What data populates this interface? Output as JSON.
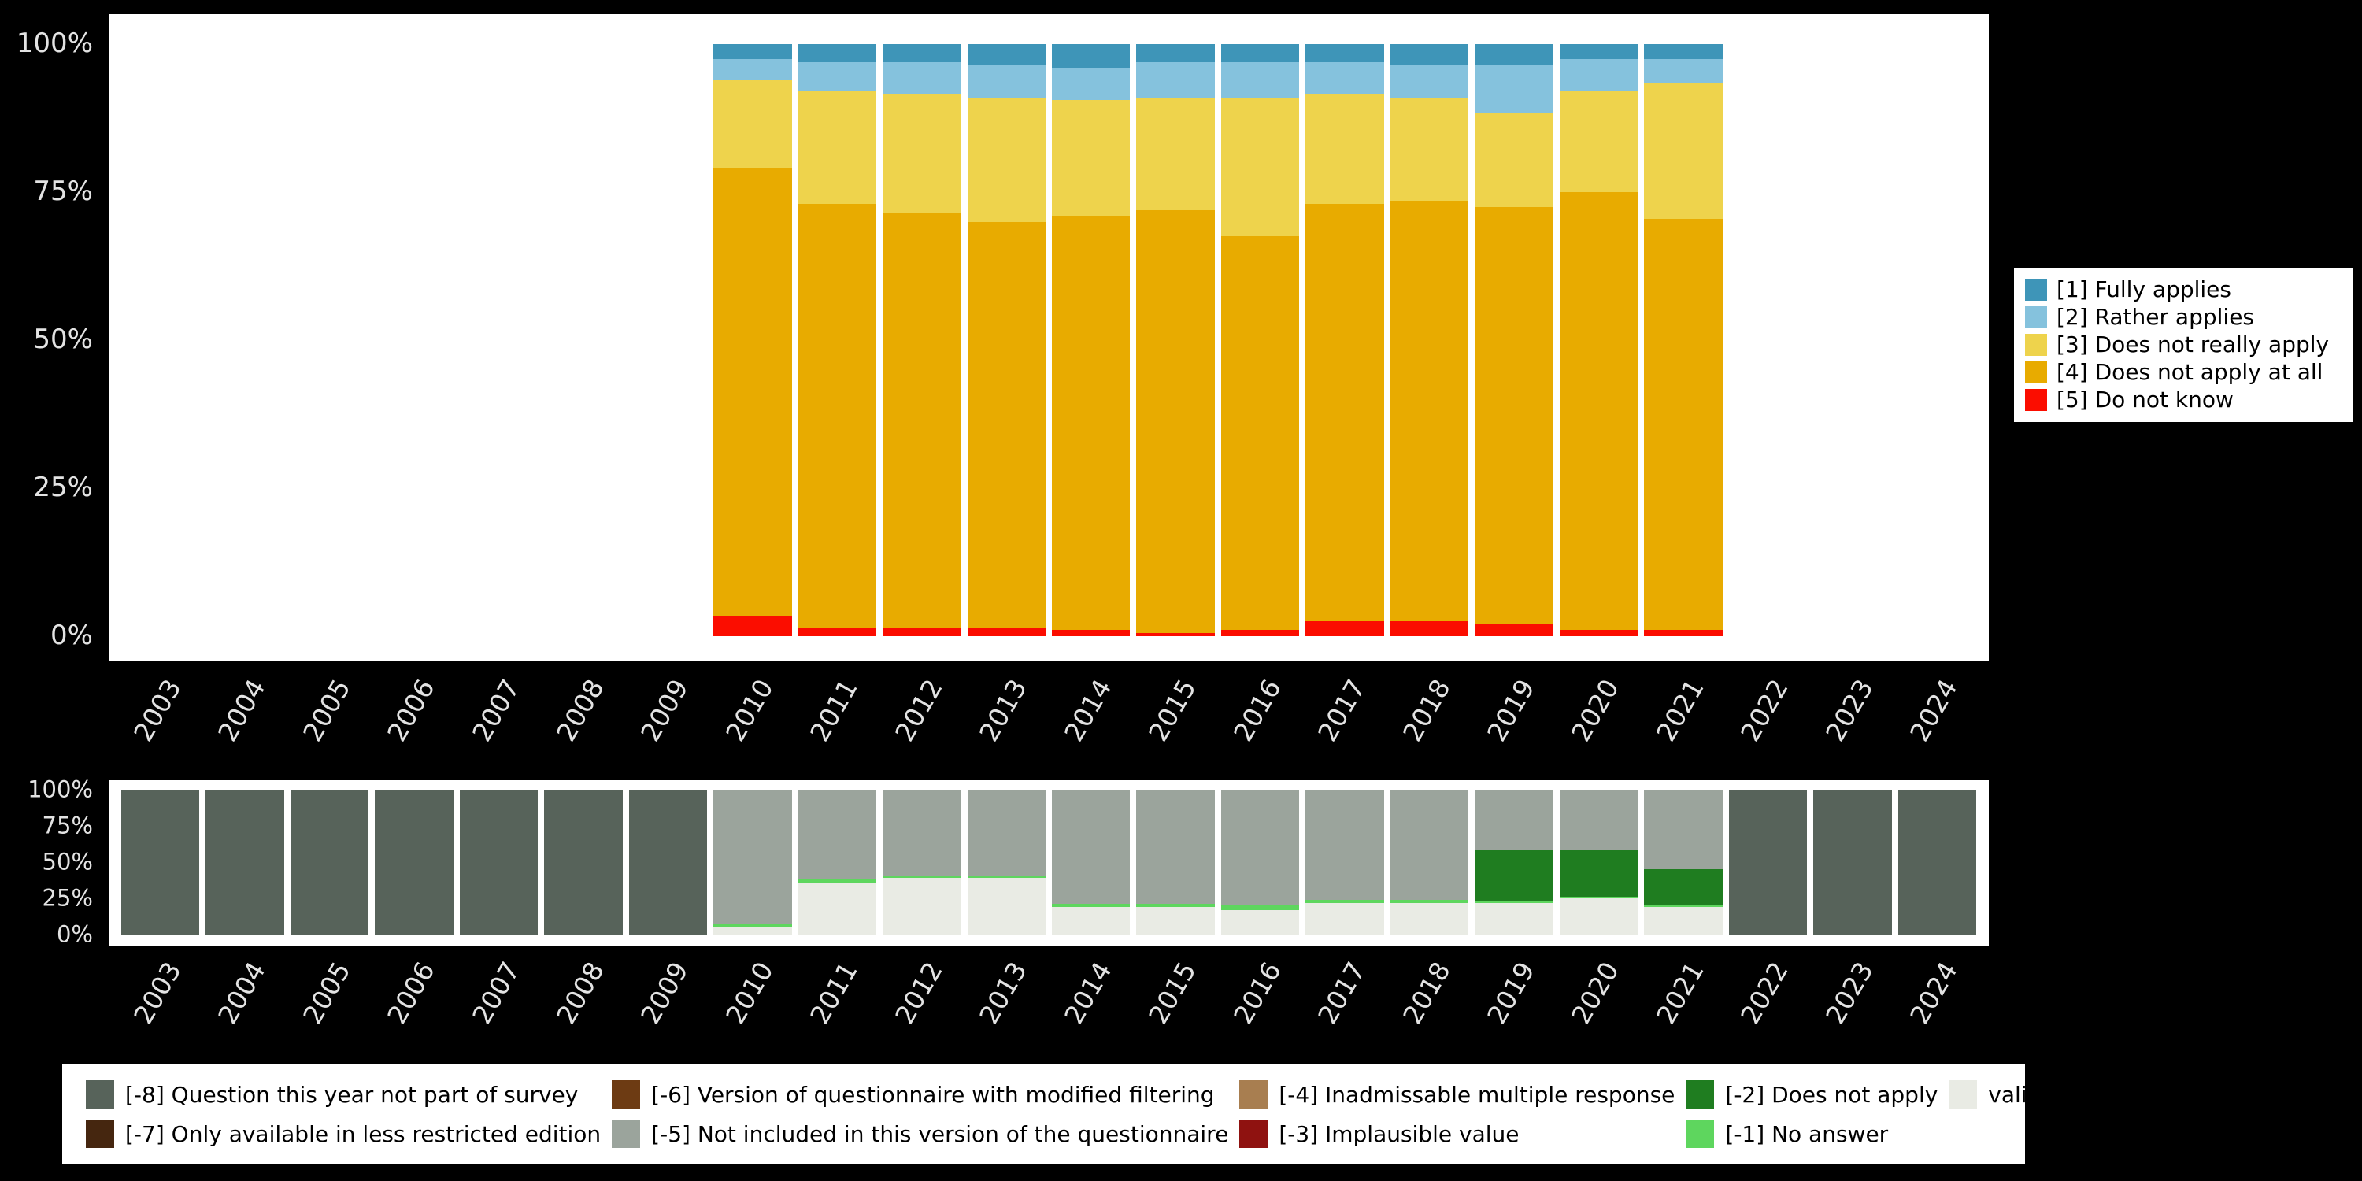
{
  "colors": {
    "background": "#000000",
    "panel_background": "#ffffff",
    "axis_text": "#e3e3e3",
    "legend_background": "#ffffff",
    "legend_border": "#000000"
  },
  "y_axis": {
    "ticks": [
      {
        "label": "0%",
        "value": 0
      },
      {
        "label": "25%",
        "value": 25
      },
      {
        "label": "50%",
        "value": 50
      },
      {
        "label": "75%",
        "value": 75
      },
      {
        "label": "100%",
        "value": 100
      }
    ]
  },
  "chart_data": [
    {
      "id": "answers-by-year",
      "type": "bar",
      "stacked": true,
      "orientation": "vertical",
      "title": "",
      "xlabel": "",
      "ylabel": "",
      "ylim": [
        0,
        100
      ],
      "unit": "percent",
      "legend_position": "right",
      "grid": false,
      "categories": [
        "2003",
        "2004",
        "2005",
        "2006",
        "2007",
        "2008",
        "2009",
        "2010",
        "2011",
        "2012",
        "2013",
        "2014",
        "2015",
        "2016",
        "2017",
        "2018",
        "2019",
        "2020",
        "2021",
        "2022",
        "2023",
        "2024"
      ],
      "series": [
        {
          "name": "[5] Do not know",
          "color": "#fb0d00",
          "values": [
            null,
            null,
            null,
            null,
            null,
            null,
            null,
            3.5,
            1.5,
            1.5,
            1.5,
            1,
            0.5,
            1,
            2.5,
            2.5,
            2,
            1,
            1,
            null,
            null,
            null
          ]
        },
        {
          "name": "[4] Does not apply at all",
          "color": "#e8ab00",
          "values": [
            null,
            null,
            null,
            null,
            null,
            null,
            null,
            75.5,
            71.5,
            70,
            68.5,
            70,
            71.5,
            66.5,
            70.5,
            71,
            70.5,
            74,
            69.5,
            null,
            null,
            null
          ]
        },
        {
          "name": "[3] Does not really apply",
          "color": "#eed34c",
          "values": [
            null,
            null,
            null,
            null,
            null,
            null,
            null,
            15,
            19,
            20,
            21,
            19.5,
            19,
            23.5,
            18.5,
            17.5,
            16,
            17,
            23,
            null,
            null,
            null
          ]
        },
        {
          "name": "[2] Rather applies",
          "color": "#85c2dd",
          "values": [
            null,
            null,
            null,
            null,
            null,
            null,
            null,
            3.5,
            5,
            5.5,
            5.5,
            5.5,
            6,
            6,
            5.5,
            5.5,
            8,
            5.5,
            4,
            null,
            null,
            null
          ]
        },
        {
          "name": "[1] Fully applies",
          "color": "#3e95b8",
          "values": [
            null,
            null,
            null,
            null,
            null,
            null,
            null,
            2.5,
            3,
            3,
            3.5,
            4,
            3,
            3,
            3,
            3.5,
            3.5,
            2.5,
            2.5,
            null,
            null,
            null
          ]
        }
      ]
    },
    {
      "id": "missing-codes-by-year",
      "type": "bar",
      "stacked": true,
      "orientation": "vertical",
      "title": "",
      "xlabel": "",
      "ylabel": "",
      "ylim": [
        0,
        100
      ],
      "unit": "percent",
      "legend_position": "bottom",
      "grid": false,
      "categories": [
        "2003",
        "2004",
        "2005",
        "2006",
        "2007",
        "2008",
        "2009",
        "2010",
        "2011",
        "2012",
        "2013",
        "2014",
        "2015",
        "2016",
        "2017",
        "2018",
        "2019",
        "2020",
        "2021",
        "2022",
        "2023",
        "2024"
      ],
      "series": [
        {
          "name": "valid cases",
          "color": "#e9ebe4",
          "values": [
            0,
            0,
            0,
            0,
            0,
            0,
            0,
            5,
            36,
            39,
            39,
            19,
            19,
            17,
            22,
            22,
            22,
            25,
            19,
            0,
            0,
            0
          ]
        },
        {
          "name": "[-1] No answer",
          "color": "#5ed65e",
          "values": [
            0,
            0,
            0,
            0,
            0,
            0,
            0,
            2,
            2,
            2,
            2,
            2,
            2,
            3,
            2,
            2,
            1,
            1,
            1,
            0,
            0,
            0
          ]
        },
        {
          "name": "[-2] Does not apply",
          "color": "#1f7d20",
          "values": [
            0,
            0,
            0,
            0,
            0,
            0,
            0,
            0,
            0,
            0,
            0,
            0,
            0,
            0,
            0,
            0,
            35,
            32,
            25,
            0,
            0,
            0
          ]
        },
        {
          "name": "[-3] Implausible value",
          "color": "#8f1210",
          "values": [
            0,
            0,
            0,
            0,
            0,
            0,
            0,
            0,
            0,
            0,
            0,
            0,
            0,
            0,
            0,
            0,
            0,
            0,
            0,
            0,
            0,
            0
          ]
        },
        {
          "name": "[-4] Inadmissable multiple response",
          "color": "#a87e50",
          "values": [
            0,
            0,
            0,
            0,
            0,
            0,
            0,
            0,
            0,
            0,
            0,
            0,
            0,
            0,
            0,
            0,
            0,
            0,
            0,
            0,
            0,
            0
          ]
        },
        {
          "name": "[-5] Not included in this version of the questionnaire",
          "color": "#9ba49c",
          "values": [
            0,
            0,
            0,
            0,
            0,
            0,
            0,
            93,
            62,
            59,
            59,
            79,
            79,
            80,
            76,
            76,
            42,
            42,
            55,
            0,
            0,
            0
          ]
        },
        {
          "name": "[-6] Version of questionnaire with modified filtering",
          "color": "#6d3b13",
          "values": [
            0,
            0,
            0,
            0,
            0,
            0,
            0,
            0,
            0,
            0,
            0,
            0,
            0,
            0,
            0,
            0,
            0,
            0,
            0,
            0,
            0,
            0
          ]
        },
        {
          "name": "[-7] Only available in less restricted edition",
          "color": "#45260f",
          "values": [
            0,
            0,
            0,
            0,
            0,
            0,
            0,
            0,
            0,
            0,
            0,
            0,
            0,
            0,
            0,
            0,
            0,
            0,
            0,
            0,
            0,
            0
          ]
        },
        {
          "name": "[-8] Question this year not part of survey",
          "color": "#57635a",
          "values": [
            100,
            100,
            100,
            100,
            100,
            100,
            100,
            0,
            0,
            0,
            0,
            0,
            0,
            0,
            0,
            0,
            0,
            0,
            0,
            100,
            100,
            100
          ]
        }
      ]
    }
  ],
  "top_legend": {
    "items": [
      {
        "label": "[1] Fully applies",
        "color": "#3e95b8"
      },
      {
        "label": "[2] Rather applies",
        "color": "#85c2dd"
      },
      {
        "label": "[3] Does not really apply",
        "color": "#eed34c"
      },
      {
        "label": "[4] Does not apply at all",
        "color": "#e8ab00"
      },
      {
        "label": "[5] Do not know",
        "color": "#fb0d00"
      }
    ]
  },
  "bottom_legend": {
    "items": [
      {
        "label": "[-8] Question this year not part of survey",
        "color": "#57635a"
      },
      {
        "label": "[-7] Only available in less restricted edition",
        "color": "#45260f"
      },
      {
        "label": "[-6] Version of questionnaire with modified filtering",
        "color": "#6d3b13"
      },
      {
        "label": "[-5] Not included in this version of the questionnaire",
        "color": "#9ba49c"
      },
      {
        "label": "[-4] Inadmissable multiple response",
        "color": "#a87e50"
      },
      {
        "label": "[-3] Implausible value",
        "color": "#8f1210"
      },
      {
        "label": "[-2] Does not apply",
        "color": "#1f7d20"
      },
      {
        "label": "[-1] No answer",
        "color": "#5ed65e"
      },
      {
        "label": "valid cases",
        "color": "#e9ebe4"
      }
    ]
  }
}
